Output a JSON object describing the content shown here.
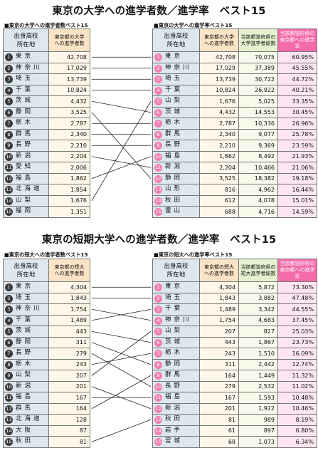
{
  "section1": {
    "title": "東京の大学への進学者数／進学率　ベスト15",
    "left": {
      "subtitle": "■東京の大学への進学者数ベスト15",
      "header": {
        "pref": "出身高校\n所在地",
        "count": "東京都の大学\nへの進学者数"
      },
      "rows": [
        {
          "rank": "1",
          "pref": "東京",
          "count": "42,708"
        },
        {
          "rank": "2",
          "pref": "神奈川",
          "count": "17,029"
        },
        {
          "rank": "3",
          "pref": "埼玉",
          "count": "13,739"
        },
        {
          "rank": "4",
          "pref": "千葉",
          "count": "10,824"
        },
        {
          "rank": "5",
          "pref": "茨城",
          "count": "4,432"
        },
        {
          "rank": "6",
          "pref": "静岡",
          "count": "3,525"
        },
        {
          "rank": "7",
          "pref": "栃木",
          "count": "2,787"
        },
        {
          "rank": "8",
          "pref": "群馬",
          "count": "2,340"
        },
        {
          "rank": "9",
          "pref": "長野",
          "count": "2,210"
        },
        {
          "rank": "10",
          "pref": "新潟",
          "count": "2,204"
        },
        {
          "rank": "11",
          "pref": "愛知",
          "count": "2,006"
        },
        {
          "rank": "12",
          "pref": "福島",
          "count": "1,862"
        },
        {
          "rank": "13",
          "pref": "北海道",
          "count": "1,854"
        },
        {
          "rank": "14",
          "pref": "山梨",
          "count": "1,676"
        },
        {
          "rank": "15",
          "pref": "福岡",
          "count": "1,351"
        }
      ]
    },
    "right": {
      "subtitle": "■東京の大学への進学率ベスト15",
      "header": {
        "pref": "出身高校\n所在地",
        "count": "東京都の大学\nへの進学者数",
        "total": "当該都道府県の\n大学進学者総数",
        "rate": "当該都道府県の\n東京都への進学率"
      },
      "rows": [
        {
          "rank": "1",
          "pref": "東京",
          "count": "42,708",
          "total": "70,075",
          "rate": "60.95%"
        },
        {
          "rank": "2",
          "pref": "神奈川",
          "count": "17,029",
          "total": "37,389",
          "rate": "45.55%"
        },
        {
          "rank": "3",
          "pref": "埼玉",
          "count": "13,739",
          "total": "30,722",
          "rate": "44.72%"
        },
        {
          "rank": "4",
          "pref": "千葉",
          "count": "10,824",
          "total": "26,922",
          "rate": "40.21%"
        },
        {
          "rank": "5",
          "pref": "山梨",
          "count": "1,676",
          "total": "5,025",
          "rate": "33.35%"
        },
        {
          "rank": "6",
          "pref": "茨城",
          "count": "4,432",
          "total": "14,553",
          "rate": "30.45%"
        },
        {
          "rank": "7",
          "pref": "栃木",
          "count": "2,787",
          "total": "10,336",
          "rate": "26.96%"
        },
        {
          "rank": "8",
          "pref": "群馬",
          "count": "2,340",
          "total": "9,077",
          "rate": "25.78%"
        },
        {
          "rank": "9",
          "pref": "長野",
          "count": "2,210",
          "total": "9,369",
          "rate": "23.59%"
        },
        {
          "rank": "10",
          "pref": "福島",
          "count": "1,862",
          "total": "8,492",
          "rate": "21.93%"
        },
        {
          "rank": "11",
          "pref": "新潟",
          "count": "2,204",
          "total": "10,466",
          "rate": "21.06%"
        },
        {
          "rank": "12",
          "pref": "静岡",
          "count": "3,525",
          "total": "18,382",
          "rate": "19.18%"
        },
        {
          "rank": "13",
          "pref": "山形",
          "count": "816",
          "total": "4,962",
          "rate": "16.44%"
        },
        {
          "rank": "14",
          "pref": "秋田",
          "count": "612",
          "total": "4,078",
          "rate": "15.01%"
        },
        {
          "rank": "15",
          "pref": "富山",
          "count": "688",
          "total": "4,716",
          "rate": "14.59%"
        }
      ]
    },
    "links": [
      [
        1,
        1
      ],
      [
        2,
        2
      ],
      [
        3,
        3
      ],
      [
        4,
        4
      ],
      [
        5,
        6
      ],
      [
        6,
        12
      ],
      [
        7,
        7
      ],
      [
        8,
        8
      ],
      [
        9,
        9
      ],
      [
        10,
        11
      ],
      [
        12,
        10
      ],
      [
        14,
        5
      ]
    ]
  },
  "section2": {
    "title": "東京の短期大学への進学者数／進学率　ベスト15",
    "left": {
      "subtitle": "■東京の短大への進学者数ベスト15",
      "header": {
        "pref": "出身高校\n所在地",
        "count": "東京都の短大\nへの進学者数"
      },
      "rows": [
        {
          "rank": "1",
          "pref": "東京",
          "count": "4,304"
        },
        {
          "rank": "2",
          "pref": "埼玉",
          "count": "1,843"
        },
        {
          "rank": "3",
          "pref": "神奈川",
          "count": "1,754"
        },
        {
          "rank": "4",
          "pref": "千葉",
          "count": "1,489"
        },
        {
          "rank": "5",
          "pref": "茨城",
          "count": "443"
        },
        {
          "rank": "6",
          "pref": "静岡",
          "count": "311"
        },
        {
          "rank": "7",
          "pref": "長野",
          "count": "279"
        },
        {
          "rank": "8",
          "pref": "栃木",
          "count": "243"
        },
        {
          "rank": "9",
          "pref": "山梨",
          "count": "207"
        },
        {
          "rank": "10",
          "pref": "新潟",
          "count": "201"
        },
        {
          "rank": "11",
          "pref": "福島",
          "count": "167"
        },
        {
          "rank": "12",
          "pref": "群馬",
          "count": "164"
        },
        {
          "rank": "13",
          "pref": "北海道",
          "count": "128"
        },
        {
          "rank": "14",
          "pref": "大阪",
          "count": "87"
        },
        {
          "rank": "15",
          "pref": "秋田",
          "count": "81"
        }
      ]
    },
    "right": {
      "subtitle": "■東京の短大への進学率ベスト15",
      "header": {
        "pref": "出身高校\n所在地",
        "count": "東京都の短大\nへの進学者数",
        "total": "当該都道府県の\n短大進学者総数",
        "rate": "当該都道府県の\n東京都への進学率"
      },
      "rows": [
        {
          "rank": "1",
          "pref": "東京",
          "count": "4,304",
          "total": "5,872",
          "rate": "73.30%"
        },
        {
          "rank": "2",
          "pref": "埼玉",
          "count": "1,843",
          "total": "3,882",
          "rate": "47.48%"
        },
        {
          "rank": "3",
          "pref": "千葉",
          "count": "1,489",
          "total": "3,342",
          "rate": "44.55%"
        },
        {
          "rank": "4",
          "pref": "神奈川",
          "count": "1,754",
          "total": "4,683",
          "rate": "37.45%"
        },
        {
          "rank": "5",
          "pref": "山梨",
          "count": "207",
          "total": "827",
          "rate": "25.03%"
        },
        {
          "rank": "6",
          "pref": "茨城",
          "count": "443",
          "total": "1,867",
          "rate": "23.73%"
        },
        {
          "rank": "7",
          "pref": "栃木",
          "count": "243",
          "total": "1,510",
          "rate": "16.09%"
        },
        {
          "rank": "8",
          "pref": "静岡",
          "count": "311",
          "total": "2,442",
          "rate": "12.74%"
        },
        {
          "rank": "9",
          "pref": "群馬",
          "count": "164",
          "total": "1,449",
          "rate": "11.32%"
        },
        {
          "rank": "10",
          "pref": "長野",
          "count": "279",
          "total": "2,532",
          "rate": "11.02%"
        },
        {
          "rank": "11",
          "pref": "福島",
          "count": "167",
          "total": "1,593",
          "rate": "10.48%"
        },
        {
          "rank": "12",
          "pref": "新潟",
          "count": "201",
          "total": "1,922",
          "rate": "10.46%"
        },
        {
          "rank": "13",
          "pref": "秋田",
          "count": "81",
          "total": "989",
          "rate": "8.19%"
        },
        {
          "rank": "14",
          "pref": "岩手",
          "count": "61",
          "total": "897",
          "rate": "6.80%"
        },
        {
          "rank": "15",
          "pref": "宮城",
          "count": "68",
          "total": "1,073",
          "rate": "6.34%"
        }
      ]
    },
    "links": [
      [
        1,
        1
      ],
      [
        2,
        2
      ],
      [
        3,
        4
      ],
      [
        4,
        3
      ],
      [
        5,
        6
      ],
      [
        6,
        8
      ],
      [
        7,
        10
      ],
      [
        8,
        7
      ],
      [
        9,
        5
      ],
      [
        10,
        12
      ],
      [
        11,
        11
      ],
      [
        12,
        9
      ],
      [
        15,
        13
      ]
    ]
  }
}
